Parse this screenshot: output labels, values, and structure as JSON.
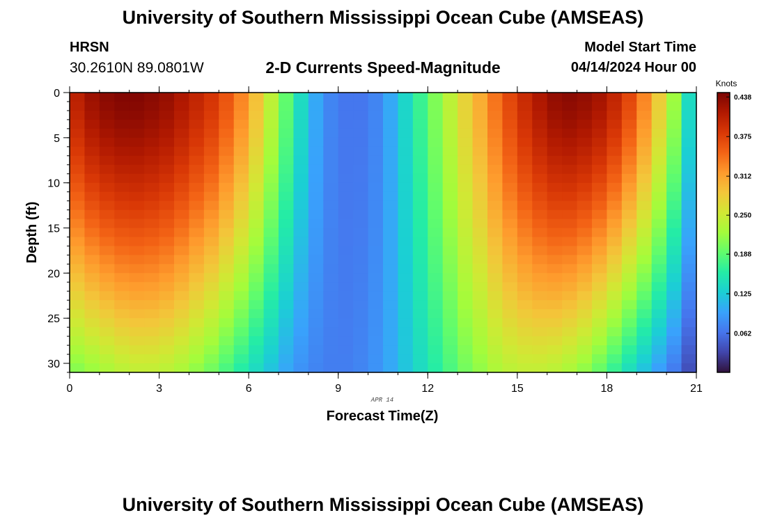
{
  "header": {
    "title": "University of Southern Mississippi Ocean Cube (AMSEAS)",
    "station": "HRSN",
    "coords": "30.2610N  89.0801W",
    "subtitle": "2-D Currents Speed-Magnitude",
    "model_start_label": "Model Start Time",
    "model_start_value": "04/14/2024 Hour 00"
  },
  "footer": {
    "title": "University of Southern Mississippi Ocean Cube (AMSEAS)"
  },
  "chart_data": {
    "type": "heatmap",
    "title": "2-D Currents Speed-Magnitude",
    "xlabel": "Forecast Time(Z)",
    "ylabel": "Depth (ft)",
    "date_label": "APR 14",
    "xlim": [
      0,
      21
    ],
    "ylim": [
      31,
      0
    ],
    "x_ticks": [
      "0",
      "3",
      "6",
      "9",
      "12",
      "15",
      "18",
      "21"
    ],
    "x_tick_values": [
      0,
      3,
      6,
      9,
      12,
      15,
      18,
      21
    ],
    "y_ticks": [
      "0",
      "5",
      "10",
      "15",
      "20",
      "25",
      "30"
    ],
    "y_tick_values": [
      0,
      5,
      10,
      15,
      20,
      25,
      30
    ],
    "time_steps": 42,
    "depth_levels": 31,
    "surface_speed_knots": [
      0.405,
      0.425,
      0.435,
      0.44,
      0.44,
      0.435,
      0.428,
      0.415,
      0.4,
      0.385,
      0.36,
      0.33,
      0.29,
      0.24,
      0.19,
      0.14,
      0.1,
      0.075,
      0.065,
      0.065,
      0.075,
      0.1,
      0.135,
      0.17,
      0.205,
      0.24,
      0.275,
      0.305,
      0.34,
      0.37,
      0.395,
      0.415,
      0.43,
      0.435,
      0.43,
      0.42,
      0.4,
      0.37,
      0.33,
      0.28,
      0.22,
      0.14
    ],
    "bottom_speed_knots": [
      0.21,
      0.22,
      0.23,
      0.24,
      0.245,
      0.245,
      0.24,
      0.23,
      0.215,
      0.2,
      0.18,
      0.16,
      0.14,
      0.12,
      0.1,
      0.085,
      0.075,
      0.07,
      0.07,
      0.075,
      0.085,
      0.1,
      0.12,
      0.14,
      0.16,
      0.18,
      0.2,
      0.215,
      0.23,
      0.24,
      0.245,
      0.245,
      0.24,
      0.23,
      0.215,
      0.195,
      0.17,
      0.145,
      0.12,
      0.095,
      0.07,
      0.04
    ],
    "colorbar": {
      "label": "Knots",
      "ticks": [
        "0.438",
        "0.375",
        "0.312",
        "0.250",
        "0.188",
        "0.125",
        "0.062"
      ],
      "tick_values": [
        0.438,
        0.375,
        0.312,
        0.25,
        0.188,
        0.125,
        0.062
      ],
      "range": [
        0,
        0.445
      ],
      "colors": [
        "#30123b",
        "#4145ab",
        "#4675ed",
        "#39a2fc",
        "#1bcfd4",
        "#24eca6",
        "#61fc6c",
        "#a4fc3b",
        "#d1e834",
        "#f3c63a",
        "#fe9b2d",
        "#f36315",
        "#d93806",
        "#b11901",
        "#7a0402"
      ]
    }
  }
}
